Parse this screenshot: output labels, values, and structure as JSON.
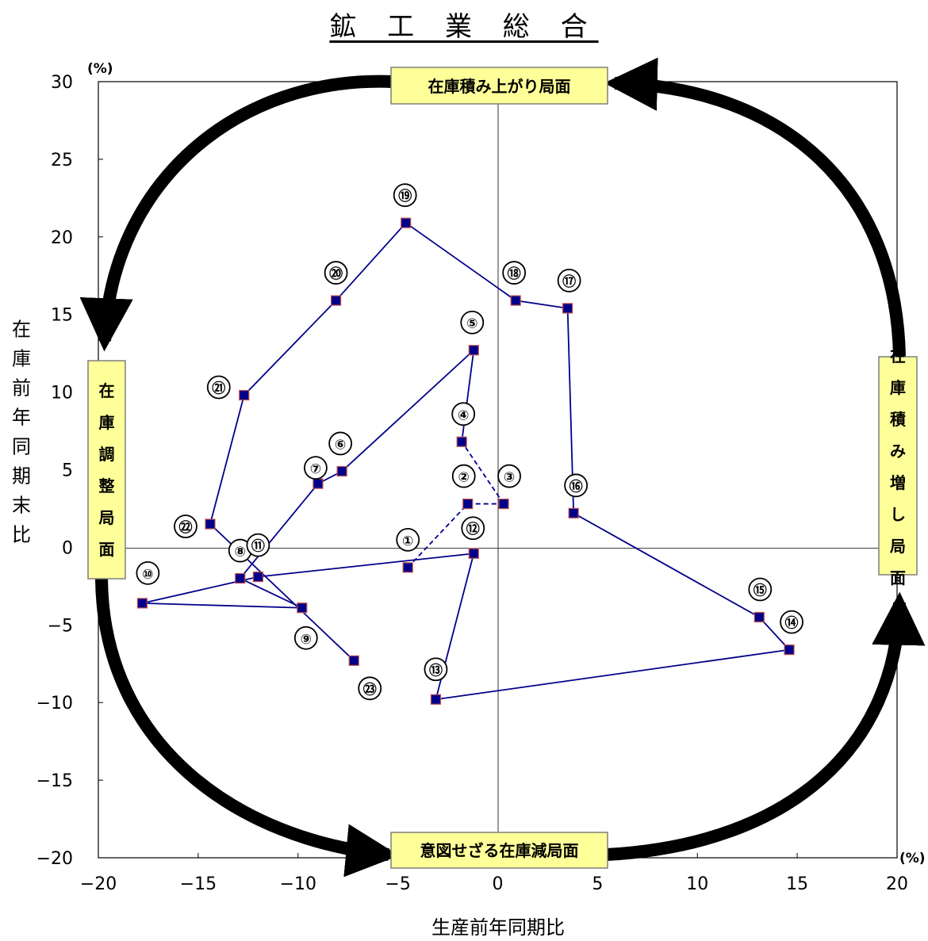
{
  "title": "鉱 工 業 総 合",
  "chart_data": {
    "type": "scatter",
    "title": "鉱 工 業 総 合",
    "xlabel": "生産前年同期比",
    "ylabel": "在庫前年同期末比",
    "x_unit": "(%)",
    "y_unit": "(%)",
    "xlim": [
      -20,
      20
    ],
    "ylim": [
      -20,
      30
    ],
    "x_ticks": [
      "−20",
      "−15",
      "−10",
      "−5",
      "0",
      "5",
      "10",
      "15",
      "20"
    ],
    "y_ticks": [
      "30",
      "25",
      "20",
      "15",
      "10",
      "5",
      "0",
      "−5",
      "−10",
      "−15",
      "−20"
    ],
    "line_color": "#00008b",
    "marker_color": "#00008b",
    "marker_edge_color": "#c0504d",
    "points": [
      {
        "label": "①",
        "x": -4.5,
        "y": -1.3
      },
      {
        "label": "②",
        "x": -1.5,
        "y": 2.8
      },
      {
        "label": "③",
        "x": 0.3,
        "y": 2.8
      },
      {
        "label": "④",
        "x": -1.8,
        "y": 6.8
      },
      {
        "label": "⑤",
        "x": -1.2,
        "y": 12.7
      },
      {
        "label": "⑥",
        "x": -7.8,
        "y": 4.9
      },
      {
        "label": "⑦",
        "x": -9.0,
        "y": 4.1
      },
      {
        "label": "⑧",
        "x": -12.9,
        "y": -2.0
      },
      {
        "label": "⑨",
        "x": -9.8,
        "y": -3.9
      },
      {
        "label": "⑩",
        "x": -17.8,
        "y": -3.6
      },
      {
        "label": "⑪",
        "x": -12.0,
        "y": -1.9
      },
      {
        "label": "⑫",
        "x": -1.2,
        "y": -0.4
      },
      {
        "label": "⑬",
        "x": -3.1,
        "y": -9.8
      },
      {
        "label": "⑭",
        "x": 14.6,
        "y": -6.6
      },
      {
        "label": "⑮",
        "x": 13.1,
        "y": -4.5
      },
      {
        "label": "⑯",
        "x": 3.8,
        "y": 2.2
      },
      {
        "label": "⑰",
        "x": 3.5,
        "y": 15.4
      },
      {
        "label": "⑱",
        "x": 0.9,
        "y": 15.9
      },
      {
        "label": "⑲",
        "x": -4.6,
        "y": 20.9
      },
      {
        "label": "⑳",
        "x": -8.1,
        "y": 15.9
      },
      {
        "label": "㉑",
        "x": -12.7,
        "y": 9.8
      },
      {
        "label": "㉒",
        "x": -14.4,
        "y": 1.5
      },
      {
        "label": "㉓",
        "x": -7.2,
        "y": -7.3
      }
    ],
    "dashed_segments": [
      [
        0,
        1
      ],
      [
        1,
        2
      ],
      [
        2,
        3
      ]
    ],
    "phases": [
      {
        "name": "top",
        "label": "在庫積み上がり局面"
      },
      {
        "name": "right",
        "label": "在庫積み増し局面"
      },
      {
        "name": "bottom",
        "label": "意図せざる在庫減局面"
      },
      {
        "name": "left",
        "label": "在庫調整局面"
      }
    ]
  }
}
